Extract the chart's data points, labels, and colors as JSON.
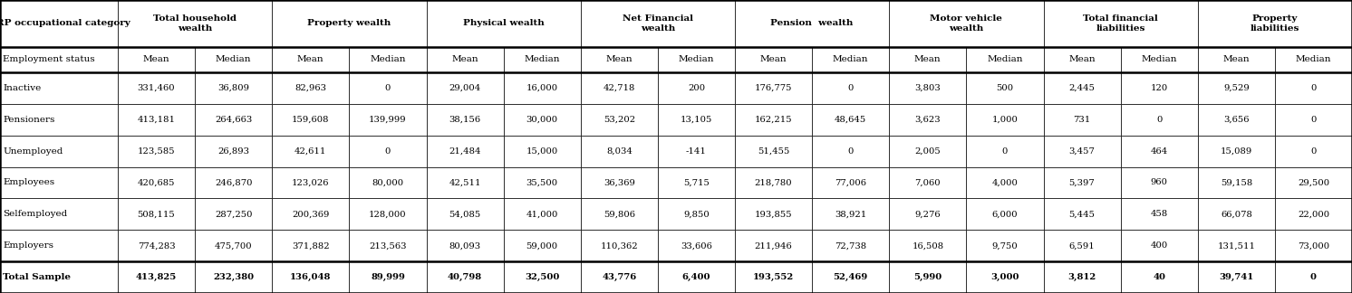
{
  "col_groups": [
    {
      "label": "Total household\nwealth",
      "span": 2
    },
    {
      "label": "Property wealth",
      "span": 2
    },
    {
      "label": "Physical wealth",
      "span": 2
    },
    {
      "label": "Net Financial\nwealth",
      "span": 2
    },
    {
      "label": "Pension  wealth",
      "span": 2
    },
    {
      "label": "Motor vehicle\nwealth",
      "span": 2
    },
    {
      "label": "Total financial\nliabilities",
      "span": 2
    },
    {
      "label": "Property\nliabilities",
      "span": 2
    }
  ],
  "header_row1_label": "HRP occupational category",
  "header_row2_label": "Employment status",
  "sub_headers": [
    "Mean",
    "Median",
    "Mean",
    "Median",
    "Mean",
    "Median",
    "Mean",
    "Median",
    "Mean",
    "Median",
    "Mean",
    "Median",
    "Mean",
    "Median",
    "Mean",
    "Median"
  ],
  "rows": [
    {
      "label": "Inactive",
      "values": [
        "331,460",
        "36,809",
        "82,963",
        "0",
        "29,004",
        "16,000",
        "42,718",
        "200",
        "176,775",
        "0",
        "3,803",
        "500",
        "2,445",
        "120",
        "9,529",
        "0"
      ],
      "bold": false
    },
    {
      "label": "Pensioners",
      "values": [
        "413,181",
        "264,663",
        "159,608",
        "139,999",
        "38,156",
        "30,000",
        "53,202",
        "13,105",
        "162,215",
        "48,645",
        "3,623",
        "1,000",
        "731",
        "0",
        "3,656",
        "0"
      ],
      "bold": false
    },
    {
      "label": "Unemployed",
      "values": [
        "123,585",
        "26,893",
        "42,611",
        "0",
        "21,484",
        "15,000",
        "8,034",
        "-141",
        "51,455",
        "0",
        "2,005",
        "0",
        "3,457",
        "464",
        "15,089",
        "0"
      ],
      "bold": false
    },
    {
      "label": "Employees",
      "values": [
        "420,685",
        "246,870",
        "123,026",
        "80,000",
        "42,511",
        "35,500",
        "36,369",
        "5,715",
        "218,780",
        "77,006",
        "7,060",
        "4,000",
        "5,397",
        "960",
        "59,158",
        "29,500"
      ],
      "bold": false
    },
    {
      "label": "Selfemployed",
      "values": [
        "508,115",
        "287,250",
        "200,369",
        "128,000",
        "54,085",
        "41,000",
        "59,806",
        "9,850",
        "193,855",
        "38,921",
        "9,276",
        "6,000",
        "5,445",
        "458",
        "66,078",
        "22,000"
      ],
      "bold": false
    },
    {
      "label": "Employers",
      "values": [
        "774,283",
        "475,700",
        "371,882",
        "213,563",
        "80,093",
        "59,000",
        "110,362",
        "33,606",
        "211,946",
        "72,738",
        "16,508",
        "9,750",
        "6,591",
        "400",
        "131,511",
        "73,000"
      ],
      "bold": false
    },
    {
      "label": "Total Sample",
      "values": [
        "413,825",
        "232,380",
        "136,048",
        "89,999",
        "40,798",
        "32,500",
        "43,776",
        "6,400",
        "193,552",
        "52,469",
        "5,990",
        "3,000",
        "3,812",
        "40",
        "39,741",
        "0"
      ],
      "bold": true
    }
  ]
}
